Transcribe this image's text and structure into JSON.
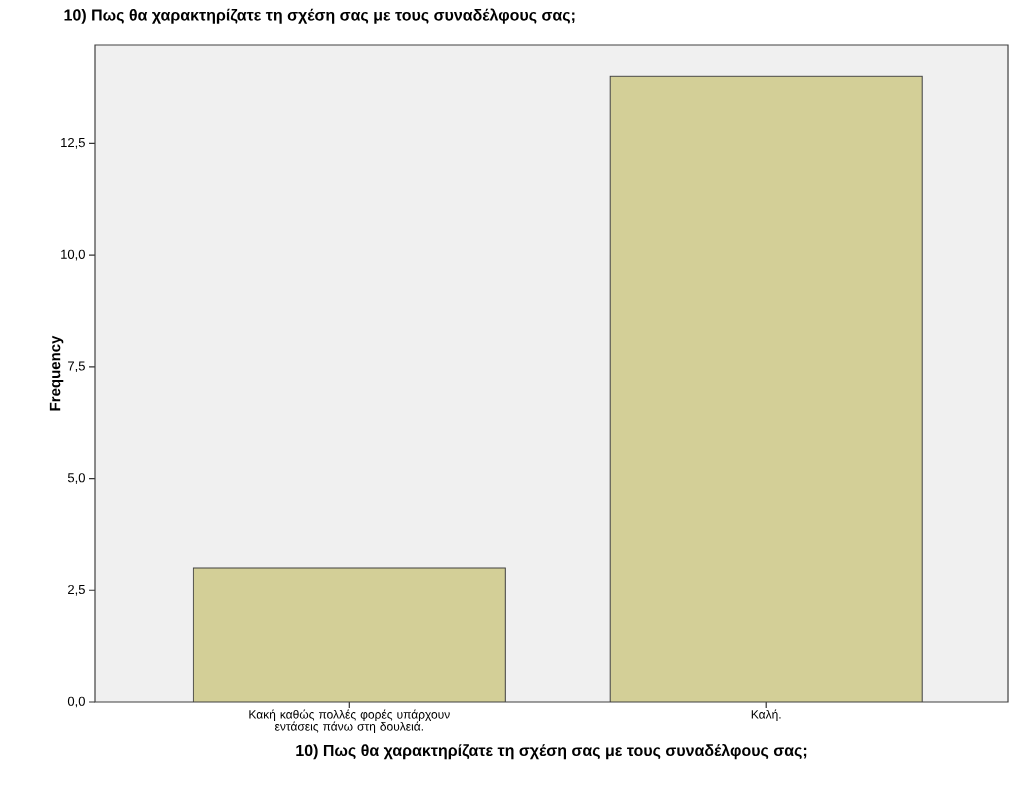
{
  "chart_data": {
    "type": "bar",
    "title": "10) Πως θα χαρακτηρίζατε τη σχέση σας με τους συναδέλφους σας;",
    "xlabel": "10) Πως θα χαρακτηρίζατε τη σχέση σας με τους συναδέλφους σας;",
    "ylabel": "Frequency",
    "categories": [
      "Κακή καθώς πολλές φορές υπάρχουν εντάσεις πάνω στη δουλειά.",
      "Καλή."
    ],
    "values": [
      3,
      14
    ],
    "color": "#d3cf97",
    "ylim": [
      0,
      14.7
    ],
    "yticks": [
      {
        "value": 0,
        "label": "0,0"
      },
      {
        "value": 2.5,
        "label": "2,5"
      },
      {
        "value": 5,
        "label": "5,0"
      },
      {
        "value": 7.5,
        "label": "7,5"
      },
      {
        "value": 10,
        "label": "10,0"
      },
      {
        "value": 12.5,
        "label": "12,5"
      }
    ],
    "grid": false
  }
}
